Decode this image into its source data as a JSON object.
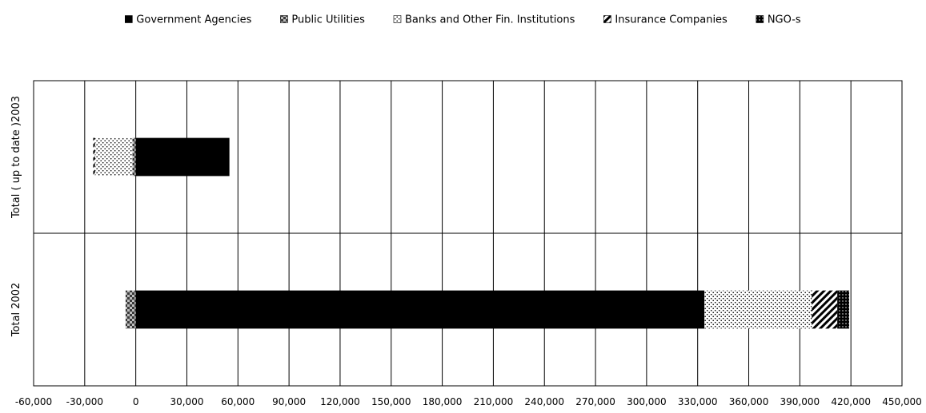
{
  "chart_data": {
    "type": "bar",
    "orientation": "horizontal",
    "stacked": true,
    "categories": [
      "Total ( up to date )2003",
      "Total  2002"
    ],
    "series": [
      {
        "name": "Government Agencies",
        "pattern": "solid",
        "values": [
          55000,
          334000
        ]
      },
      {
        "name": "Public Utilities",
        "pattern": "checker",
        "values": [
          -2000,
          -6000
        ]
      },
      {
        "name": "Banks and Other Fin. Institutions",
        "pattern": "dots",
        "values": [
          -22000,
          63000
        ]
      },
      {
        "name": "Insurance Companies",
        "pattern": "diagonal",
        "values": [
          -1000,
          15000
        ]
      },
      {
        "name": "NGO-s",
        "pattern": "dark-dots",
        "values": [
          0,
          7000
        ]
      }
    ],
    "xlim": [
      -60000,
      450000
    ],
    "xticks": [
      "-60,000",
      "-30,000",
      "0",
      "30,000",
      "60,000",
      "90,000",
      "120,000",
      "150,000",
      "180,000",
      "210,000",
      "240,000",
      "270,000",
      "300,000",
      "330,000",
      "360,000",
      "390,000",
      "420,000",
      "450,000"
    ],
    "grid": true,
    "legend_position": "top"
  }
}
